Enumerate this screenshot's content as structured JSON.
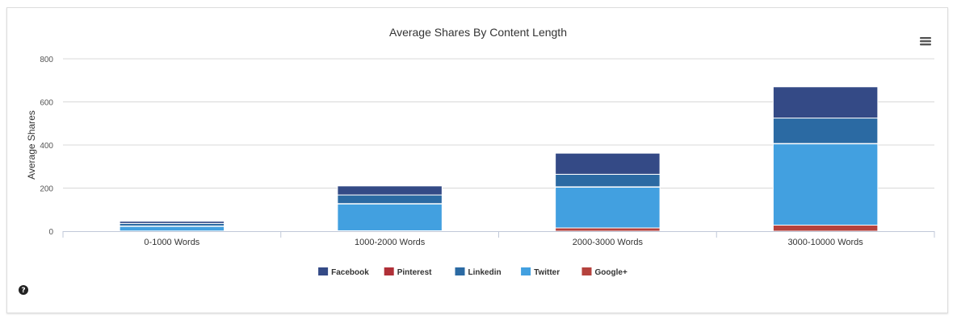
{
  "chart_data": {
    "type": "bar",
    "stacked": true,
    "title": "Average Shares By Content Length",
    "xlabel": "",
    "ylabel": "Average Shares",
    "ylim": [
      0,
      800
    ],
    "yticks": [
      0,
      200,
      400,
      600,
      800
    ],
    "categories": [
      "0-1000 Words",
      "1000-2000 Words",
      "2000-3000 Words",
      "3000-10000 Words"
    ],
    "series": [
      {
        "name": "Google+",
        "color": "#b5423d",
        "values": [
          1,
          2,
          15,
          28
        ]
      },
      {
        "name": "Twitter",
        "color": "#42a0e0",
        "values": [
          22,
          125,
          190,
          378
        ]
      },
      {
        "name": "Pinterest",
        "color": "#b03038",
        "values": [
          1,
          1,
          1,
          1
        ]
      },
      {
        "name": "Linkedin",
        "color": "#2b6aa3",
        "values": [
          12,
          40,
          58,
          118
        ]
      },
      {
        "name": "Facebook",
        "color": "#344a86",
        "values": [
          10,
          42,
          98,
          145
        ]
      }
    ],
    "legend_order": [
      "Facebook",
      "Pinterest",
      "Linkedin",
      "Twitter",
      "Google+"
    ],
    "legend_position": "bottom-center",
    "grid": true
  },
  "controls": {
    "menu_icon": "hamburger-menu-icon",
    "help_icon": "question-circle-icon"
  }
}
